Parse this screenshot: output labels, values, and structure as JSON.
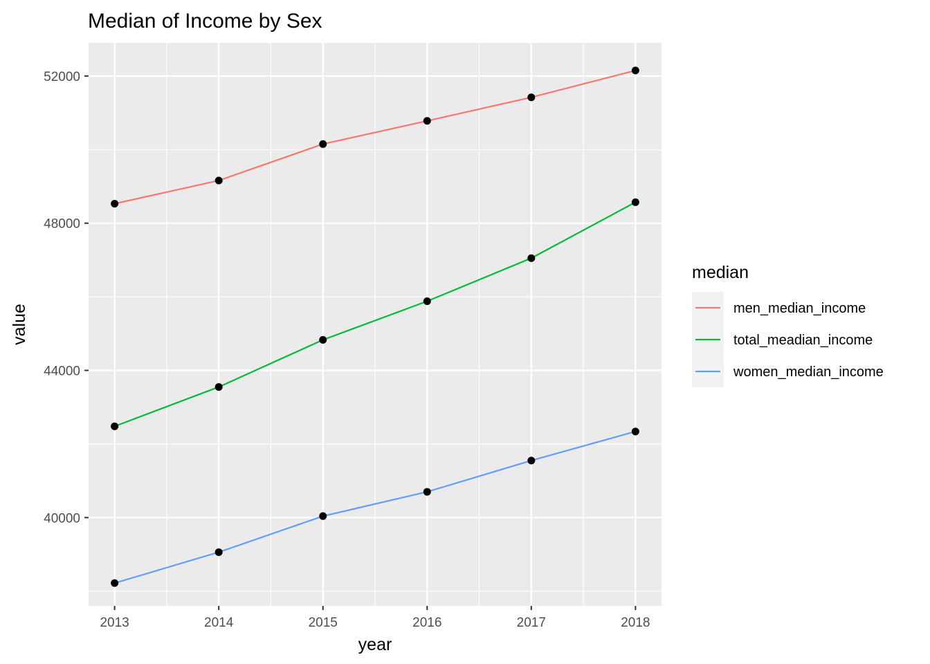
{
  "chart_data": {
    "type": "line",
    "title": "Median of Income by Sex",
    "xlabel": "year",
    "ylabel": "value",
    "x": [
      2013,
      2014,
      2015,
      2016,
      2017,
      2018
    ],
    "xlim": [
      2012.75,
      2018.25
    ],
    "ylim": [
      37600,
      52900
    ],
    "y_ticks": [
      40000,
      44000,
      48000,
      52000
    ],
    "y_minor_ticks": [
      38000,
      42000,
      46000,
      50000
    ],
    "grid": true,
    "legend": {
      "title": "median",
      "position": "right"
    },
    "series": [
      {
        "name": "men_median_income",
        "color": "#F8766D",
        "values": [
          48530,
          49160,
          50150,
          50780,
          51420,
          52150
        ]
      },
      {
        "name": "total_meadian_income",
        "color": "#00BA38",
        "values": [
          42480,
          43550,
          44830,
          45880,
          47050,
          48570
        ]
      },
      {
        "name": "women_median_income",
        "color": "#619CFF",
        "values": [
          38220,
          39060,
          40040,
          40700,
          41550,
          42340
        ]
      }
    ],
    "point_color": "#000000",
    "panel_background": "#EBEBEB"
  }
}
